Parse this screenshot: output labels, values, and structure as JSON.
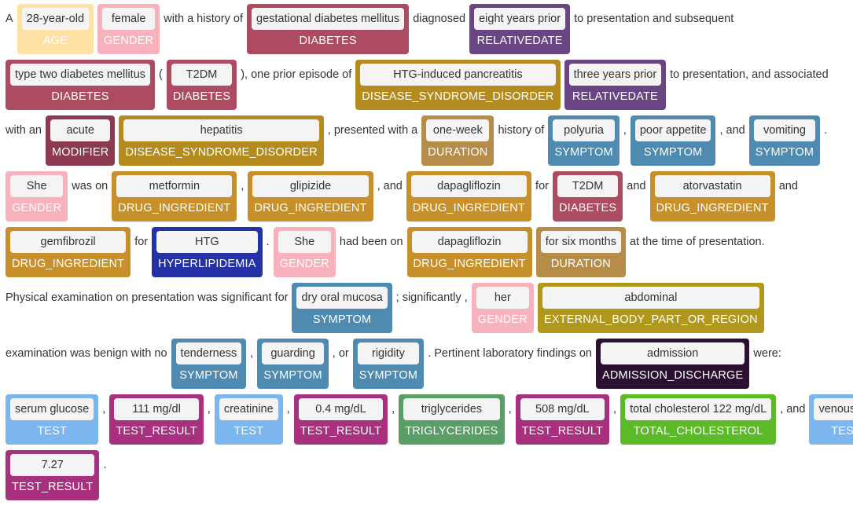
{
  "lines": [
    [
      {
        "text": "A"
      },
      {
        "text": "28-year-old",
        "label": "AGE",
        "color": "#fde1a5"
      },
      {
        "text": "female",
        "label": "GENDER",
        "color": "#f7b2bd"
      },
      {
        "text": "with a history of"
      },
      {
        "text": "gestational diabetes mellitus",
        "label": "DIABETES",
        "color": "#ad4b63"
      },
      {
        "text": "diagnosed"
      },
      {
        "text": "eight years prior",
        "label": "RELATIVEDATE",
        "color": "#6a4584"
      },
      {
        "text": "to presentation and subsequent"
      }
    ],
    [
      {
        "text": "type two diabetes mellitus",
        "label": "DIABETES",
        "color": "#ad4b63"
      },
      {
        "text": "("
      },
      {
        "text": "T2DM",
        "label": "DIABETES",
        "color": "#ad4b63"
      },
      {
        "text": "), one prior episode of"
      },
      {
        "text": "HTG-induced pancreatitis",
        "label": "DISEASE_SYNDROME_DISORDER",
        "color": "#b38b1f"
      },
      {
        "text": "three years prior",
        "label": "RELATIVEDATE",
        "color": "#6a4584"
      },
      {
        "text": "to presentation, and associated"
      }
    ],
    [
      {
        "text": "with an"
      },
      {
        "text": "acute",
        "label": "MODIFIER",
        "color": "#8c3a4f"
      },
      {
        "text": "hepatitis",
        "label": "DISEASE_SYNDROME_DISORDER",
        "color": "#b38b1f"
      },
      {
        "text": ", presented with a"
      },
      {
        "text": "one-week",
        "label": "DURATION",
        "color": "#b68d48"
      },
      {
        "text": "history of"
      },
      {
        "text": "polyuria",
        "label": "SYMPTOM",
        "color": "#4f8ab0"
      },
      {
        "text": ","
      },
      {
        "text": "poor appetite",
        "label": "SYMPTOM",
        "color": "#4f8ab0"
      },
      {
        "text": ", and"
      },
      {
        "text": "vomiting",
        "label": "SYMPTOM",
        "color": "#4f8ab0"
      },
      {
        "text": "."
      }
    ],
    [
      {
        "text": "She",
        "label": "GENDER",
        "color": "#f7b2bd"
      },
      {
        "text": "was on"
      },
      {
        "text": "metformin",
        "label": "DRUG_INGREDIENT",
        "color": "#c8902a"
      },
      {
        "text": ","
      },
      {
        "text": "glipizide",
        "label": "DRUG_INGREDIENT",
        "color": "#c8902a"
      },
      {
        "text": ", and"
      },
      {
        "text": "dapagliflozin",
        "label": "DRUG_INGREDIENT",
        "color": "#c8902a"
      },
      {
        "text": "for"
      },
      {
        "text": "T2DM",
        "label": "DIABETES",
        "color": "#ad4b63"
      },
      {
        "text": "and"
      },
      {
        "text": "atorvastatin",
        "label": "DRUG_INGREDIENT",
        "color": "#c8902a"
      },
      {
        "text": "and"
      }
    ],
    [
      {
        "text": "gemfibrozil",
        "label": "DRUG_INGREDIENT",
        "color": "#c8902a"
      },
      {
        "text": "for"
      },
      {
        "text": "HTG",
        "label": "HYPERLIPIDEMIA",
        "color": "#2432a6"
      },
      {
        "text": "."
      },
      {
        "text": "She",
        "label": "GENDER",
        "color": "#f7b2bd"
      },
      {
        "text": "had been on"
      },
      {
        "text": "dapagliflozin",
        "label": "DRUG_INGREDIENT",
        "color": "#c8902a"
      },
      {
        "text": "for six months",
        "label": "DURATION",
        "color": "#b68d48"
      },
      {
        "text": "at the time of presentation."
      }
    ],
    [
      {
        "text": "Physical examination on presentation was significant for"
      },
      {
        "text": "dry oral mucosa",
        "label": "SYMPTOM",
        "color": "#4f8ab0"
      },
      {
        "text": "; significantly ,"
      },
      {
        "text": "her",
        "label": "GENDER",
        "color": "#f7b2bd"
      },
      {
        "text": "abdominal",
        "label": "EXTERNAL_BODY_PART_OR_REGION",
        "color": "#b0981c"
      }
    ],
    [
      {
        "text": "examination was benign with no"
      },
      {
        "text": "tenderness",
        "label": "SYMPTOM",
        "color": "#4f8ab0"
      },
      {
        "text": ","
      },
      {
        "text": "guarding",
        "label": "SYMPTOM",
        "color": "#4f8ab0"
      },
      {
        "text": ", or"
      },
      {
        "text": "rigidity",
        "label": "SYMPTOM",
        "color": "#4f8ab0"
      },
      {
        "text": ". Pertinent laboratory findings on"
      },
      {
        "text": "admission",
        "label": "ADMISSION_DISCHARGE",
        "color": "#2a1031"
      },
      {
        "text": "were:"
      }
    ],
    [
      {
        "text": "serum glucose",
        "label": "TEST",
        "color": "#7cb6ee"
      },
      {
        "text": ","
      },
      {
        "text": "111 mg/dl",
        "label": "TEST_RESULT",
        "color": "#a7317f"
      },
      {
        "text": ","
      },
      {
        "text": "creatinine",
        "label": "TEST",
        "color": "#7cb6ee"
      },
      {
        "text": ","
      },
      {
        "text": "0.4 mg/dL",
        "label": "TEST_RESULT",
        "color": "#a7317f"
      },
      {
        "text": ","
      },
      {
        "text": "triglycerides",
        "label": "TRIGLYCERIDES",
        "color": "#5a9d66"
      },
      {
        "text": ","
      },
      {
        "text": "508 mg/dL",
        "label": "TEST_RESULT",
        "color": "#a7317f"
      },
      {
        "text": ","
      },
      {
        "text": "total cholesterol 122 mg/dL",
        "label": "TOTAL_CHOLESTEROL",
        "color": "#5cba29"
      },
      {
        "text": ", and"
      },
      {
        "text": "venous pH",
        "label": "TEST",
        "color": "#7cb6ee"
      }
    ],
    [
      {
        "text": "7.27",
        "label": "TEST_RESULT",
        "color": "#a7317f"
      },
      {
        "text": "."
      }
    ]
  ]
}
